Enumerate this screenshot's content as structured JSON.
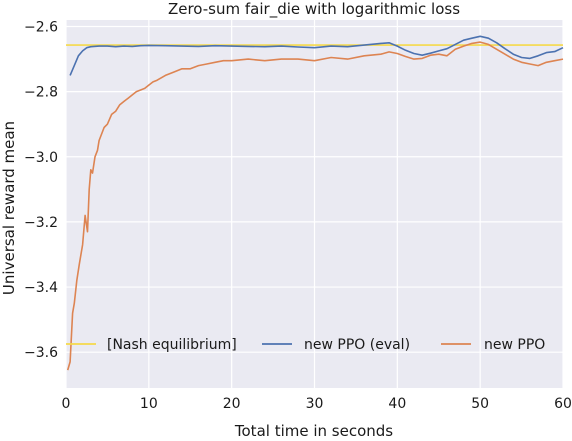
{
  "chart_data": {
    "type": "line",
    "title": "Zero-sum fair_die with logarithmic loss",
    "xlabel": "Total time in seconds",
    "ylabel": "Universal reward mean",
    "xlim": [
      0,
      60
    ],
    "ylim": [
      -3.71,
      -2.58
    ],
    "xticks": [
      0,
      10,
      20,
      30,
      40,
      50,
      60
    ],
    "xtick_labels": [
      "0",
      "10",
      "20",
      "30",
      "40",
      "50",
      "60"
    ],
    "yticks": [
      -2.6,
      -2.8,
      -3.0,
      -3.2,
      -3.4,
      -3.6
    ],
    "ytick_labels": [
      "−2.6",
      "−2.8",
      "−3.0",
      "−3.2",
      "−3.4",
      "−3.6"
    ],
    "grid": true,
    "background": "#eaeaf2",
    "legend_placement": "lower center",
    "series": [
      {
        "name": "[Nash equilibrium]",
        "color": "#f5d94a",
        "style": "hline",
        "y": -2.657
      },
      {
        "name": "new PPO (eval)",
        "color": "#4c72b0",
        "x": [
          0.5,
          1,
          1.5,
          2,
          2.5,
          3,
          4,
          5,
          6,
          7,
          8,
          9,
          10,
          12,
          14,
          16,
          18,
          20,
          22,
          24,
          26,
          28,
          30,
          32,
          34,
          36,
          38,
          39,
          40,
          41,
          42,
          43,
          44,
          45,
          46,
          47,
          48,
          49,
          50,
          51,
          52,
          53,
          54,
          55,
          56,
          57,
          58,
          59,
          60
        ],
        "y": [
          -2.75,
          -2.72,
          -2.69,
          -2.675,
          -2.665,
          -2.662,
          -2.66,
          -2.66,
          -2.662,
          -2.66,
          -2.661,
          -2.659,
          -2.658,
          -2.659,
          -2.66,
          -2.661,
          -2.659,
          -2.66,
          -2.661,
          -2.662,
          -2.66,
          -2.663,
          -2.665,
          -2.66,
          -2.662,
          -2.657,
          -2.652,
          -2.65,
          -2.66,
          -2.673,
          -2.683,
          -2.688,
          -2.682,
          -2.675,
          -2.668,
          -2.655,
          -2.642,
          -2.636,
          -2.63,
          -2.636,
          -2.65,
          -2.668,
          -2.685,
          -2.695,
          -2.698,
          -2.69,
          -2.68,
          -2.677,
          -2.665
        ]
      },
      {
        "name": "new PPO",
        "color": "#dd8452",
        "x": [
          0.2,
          0.5,
          0.8,
          1,
          1.3,
          1.6,
          2,
          2.3,
          2.6,
          2.8,
          3,
          3.2,
          3.5,
          3.8,
          4,
          4.3,
          4.6,
          5,
          5.5,
          6,
          6.5,
          7,
          7.5,
          8,
          8.5,
          9,
          9.5,
          10,
          10.5,
          11,
          12,
          13,
          14,
          15,
          16,
          17,
          18,
          19,
          20,
          22,
          24,
          26,
          28,
          30,
          32,
          34,
          36,
          38,
          39,
          40,
          41,
          42,
          43,
          44,
          45,
          46,
          47,
          48,
          49,
          50,
          51,
          52,
          53,
          54,
          55,
          56,
          57,
          58,
          59,
          60
        ],
        "y": [
          -3.655,
          -3.63,
          -3.48,
          -3.45,
          -3.38,
          -3.33,
          -3.27,
          -3.18,
          -3.23,
          -3.1,
          -3.04,
          -3.05,
          -3.0,
          -2.98,
          -2.95,
          -2.93,
          -2.91,
          -2.9,
          -2.87,
          -2.86,
          -2.84,
          -2.83,
          -2.82,
          -2.81,
          -2.8,
          -2.795,
          -2.79,
          -2.78,
          -2.77,
          -2.765,
          -2.75,
          -2.74,
          -2.73,
          -2.73,
          -2.72,
          -2.715,
          -2.71,
          -2.705,
          -2.705,
          -2.7,
          -2.705,
          -2.7,
          -2.7,
          -2.705,
          -2.695,
          -2.7,
          -2.69,
          -2.685,
          -2.678,
          -2.683,
          -2.692,
          -2.7,
          -2.698,
          -2.688,
          -2.685,
          -2.69,
          -2.67,
          -2.66,
          -2.652,
          -2.648,
          -2.655,
          -2.67,
          -2.685,
          -2.7,
          -2.71,
          -2.715,
          -2.72,
          -2.71,
          -2.705,
          -2.7
        ]
      }
    ]
  }
}
